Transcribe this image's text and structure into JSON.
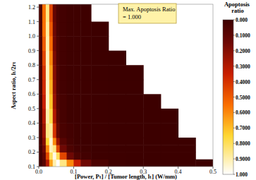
{
  "chart_data": {
    "type": "heatmap",
    "x_label": "[Power, Pₜ] / [Tumor length, lₜ]  (W/mm)",
    "y_label": "Aspect ratio, lₜ/2rₜ",
    "annotation": [
      "Max. Apoptosis Ratio",
      "= 1.000"
    ],
    "xlim": [
      0,
      0.5
    ],
    "ylim": [
      0.1,
      1.22
    ],
    "xticks": [
      {
        "value": 0,
        "label": "0.0"
      },
      0.1,
      0.2,
      0.3,
      0.4,
      0.5
    ],
    "yticks": [
      0.1,
      0.2,
      0.3,
      0.4,
      0.5,
      0.6,
      0.7,
      0.8,
      0.9,
      {
        "value": 1,
        "label": "1.0"
      },
      1.1,
      1.2
    ],
    "x_bins": [
      0,
      0.01,
      0.02,
      0.03,
      0.04,
      0.05,
      0.06,
      0.08,
      0.1,
      0.12,
      0.15,
      0.2,
      0.25,
      0.3,
      0.35,
      0.4,
      0.45,
      0.5
    ],
    "y_bins": [
      0.1,
      0.15,
      0.2,
      0.25,
      0.3,
      0.4,
      0.5,
      0.6,
      0.7,
      0.8,
      0.9,
      1.0,
      1.1,
      1.22
    ],
    "cells": [
      [
        0.01,
        0.08,
        0.3,
        0.65,
        0.9,
        1.0,
        0.85,
        0.6,
        0.35,
        0.15,
        0.05,
        0.01,
        0.003,
        0.002,
        0.001,
        0.001,
        0.001
      ],
      [
        0.02,
        0.1,
        0.45,
        0.8,
        0.97,
        0.8,
        0.45,
        0.15,
        0.05,
        0.02,
        0.005,
        0.002,
        0.001,
        0.001,
        0.001,
        0.001,
        null
      ],
      [
        0.02,
        0.15,
        0.6,
        0.92,
        0.85,
        0.45,
        0.15,
        0.05,
        0.02,
        0.01,
        0.003,
        0.001,
        0.001,
        0.001,
        0.001,
        0.001,
        null
      ],
      [
        0.02,
        0.2,
        0.75,
        0.95,
        0.6,
        0.25,
        0.08,
        0.03,
        0.01,
        0.005,
        0.002,
        0.001,
        0.001,
        0.001,
        0.001,
        0.001,
        null
      ],
      [
        0.03,
        0.25,
        0.85,
        0.88,
        0.4,
        0.12,
        0.04,
        0.02,
        0.01,
        0.005,
        0.002,
        0.001,
        0.001,
        0.001,
        0.001,
        null,
        null
      ],
      [
        0.03,
        0.3,
        0.9,
        0.78,
        0.3,
        0.09,
        0.03,
        0.01,
        0.01,
        0.005,
        0.002,
        0.001,
        0.001,
        0.001,
        0.001,
        null,
        null
      ],
      [
        0.03,
        0.35,
        0.93,
        0.72,
        0.25,
        0.07,
        0.03,
        0.01,
        0.01,
        0.005,
        0.002,
        0.001,
        0.001,
        0.001,
        null,
        null,
        null
      ],
      [
        0.04,
        0.38,
        0.93,
        0.68,
        0.22,
        0.06,
        0.02,
        0.01,
        0.01,
        0.005,
        0.002,
        0.001,
        0.001,
        null,
        null,
        null,
        null
      ],
      [
        0.04,
        0.4,
        0.92,
        0.65,
        0.2,
        0.06,
        0.02,
        0.01,
        0.01,
        0.005,
        0.002,
        0.001,
        0.001,
        null,
        null,
        null,
        null
      ],
      [
        0.04,
        0.45,
        0.92,
        0.6,
        0.18,
        0.05,
        0.02,
        0.01,
        0.01,
        0.005,
        0.002,
        0.001,
        null,
        null,
        null,
        null,
        null
      ],
      [
        0.05,
        0.5,
        0.9,
        0.55,
        0.15,
        0.05,
        0.02,
        0.01,
        0.01,
        0.005,
        0.002,
        null,
        null,
        null,
        null,
        null,
        null
      ],
      [
        0.05,
        0.55,
        0.88,
        0.5,
        0.14,
        0.04,
        0.02,
        0.01,
        0.01,
        0.005,
        0.002,
        null,
        null,
        null,
        null,
        null,
        null
      ],
      [
        0.05,
        0.55,
        0.85,
        0.45,
        0.12,
        0.04,
        0.02,
        0.01,
        0.01,
        0.005,
        null,
        null,
        null,
        null,
        null,
        null,
        null
      ]
    ],
    "colorbar": {
      "label": "Apoptosis ratio",
      "range": [
        0,
        1
      ],
      "ticks": [
        {
          "value": 0,
          "label": "0.000"
        },
        {
          "value": 0.1,
          "label": "0.1000"
        },
        {
          "value": 0.2,
          "label": "0.2000"
        },
        {
          "value": 0.3,
          "label": "0.3000"
        },
        {
          "value": 0.4,
          "label": "0.4000"
        },
        {
          "value": 0.5,
          "label": "0.5000"
        },
        {
          "value": 0.6,
          "label": "0.6000"
        },
        {
          "value": 0.7,
          "label": "0.7000"
        },
        {
          "value": 0.8,
          "label": "0.8000"
        },
        {
          "value": 0.9,
          "label": "0.9000"
        },
        {
          "value": 1,
          "label": "1.000"
        }
      ]
    }
  }
}
